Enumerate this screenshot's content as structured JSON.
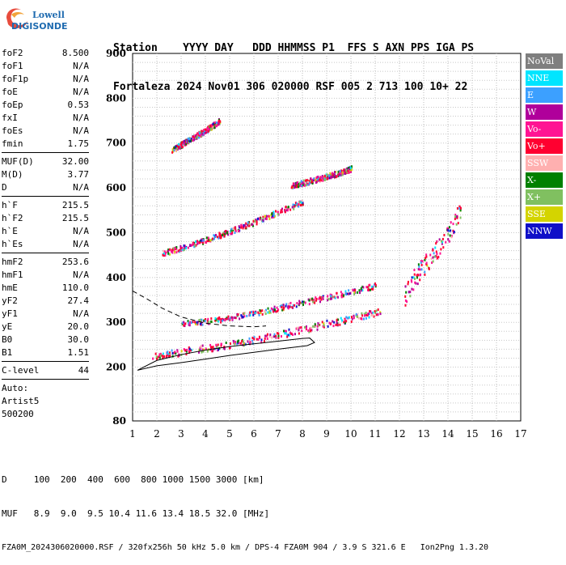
{
  "logo": {
    "line1": "Lowell",
    "line2": "DIGISONDE"
  },
  "header": {
    "labels": "Station    YYYY DAY   DDD HHMMSS P1  FFS S AXN PPS IGA PS",
    "values": "Fortaleza 2024 Nov01 306 020000 RSF 005 2 713 100 10+ 22"
  },
  "params": {
    "group1": [
      {
        "k": "foF2",
        "v": "8.500"
      },
      {
        "k": "foF1",
        "v": "N/A"
      },
      {
        "k": "foF1p",
        "v": "N/A"
      },
      {
        "k": "foE",
        "v": "N/A"
      },
      {
        "k": "foEp",
        "v": "0.53"
      },
      {
        "k": "fxI",
        "v": "N/A"
      },
      {
        "k": "foEs",
        "v": "N/A"
      },
      {
        "k": "fmin",
        "v": "1.75"
      }
    ],
    "group2": [
      {
        "k": "MUF(D)",
        "v": "32.00"
      },
      {
        "k": "M(D)",
        "v": "3.77"
      },
      {
        "k": "D",
        "v": "N/A"
      }
    ],
    "group3": [
      {
        "k": "h`F",
        "v": "215.5"
      },
      {
        "k": "h`F2",
        "v": "215.5"
      },
      {
        "k": "h`E",
        "v": "N/A"
      },
      {
        "k": "h`Es",
        "v": "N/A"
      }
    ],
    "group4": [
      {
        "k": "hmF2",
        "v": "253.6"
      },
      {
        "k": "hmF1",
        "v": "N/A"
      },
      {
        "k": "hmE",
        "v": "110.0"
      },
      {
        "k": "yF2",
        "v": "27.4"
      },
      {
        "k": "yF1",
        "v": "N/A"
      },
      {
        "k": "yE",
        "v": "20.0"
      },
      {
        "k": "B0",
        "v": "30.0"
      },
      {
        "k": "B1",
        "v": "1.51"
      }
    ],
    "clevel": {
      "k": "C-level",
      "v": "44"
    },
    "auto": [
      "Auto:",
      "Artist5",
      "500200"
    ]
  },
  "legend": [
    {
      "label": "NoVal",
      "color": "#7f7f7f"
    },
    {
      "label": "NNE",
      "color": "#00e5ff"
    },
    {
      "label": "E",
      "color": "#3ca0ff"
    },
    {
      "label": "W",
      "color": "#b0009b"
    },
    {
      "label": "Vo-",
      "color": "#ff1493"
    },
    {
      "label": "Vo+",
      "color": "#ff0030"
    },
    {
      "label": "SSW",
      "color": "#ffb0b0"
    },
    {
      "label": "X-",
      "color": "#008000"
    },
    {
      "label": "X+",
      "color": "#80c060"
    },
    {
      "label": "SSE",
      "color": "#d4d400"
    },
    {
      "label": "NNW",
      "color": "#1010c8"
    }
  ],
  "footer": {
    "d_row": "D     100  200  400  600  800 1000 1500 3000 [km]",
    "muf_row": "MUF   8.9  9.0  9.5 10.4 11.6 13.4 18.5 32.0 [MHz]",
    "info": "FZA0M_2024306020000.RSF / 320fx256h 50 kHz 5.0 km / DPS-4 FZA0M 904 / 3.9 S 321.6 E   Ion2Png 1.3.20"
  },
  "chart_data": {
    "type": "scatter",
    "xlabel": "",
    "ylabel": "",
    "xlim": [
      1,
      17
    ],
    "ylim": [
      80,
      900
    ],
    "x_ticks": [
      "1",
      "2",
      "3",
      "4",
      "5",
      "6",
      "7",
      "8",
      "9",
      "10",
      "11",
      "12",
      "13",
      "14",
      "15",
      "16",
      "17"
    ],
    "y_ticks": [
      {
        "v": 80,
        "label": "80"
      },
      {
        "v": 200,
        "label": "200"
      },
      {
        "v": 300,
        "label": "300"
      },
      {
        "v": 400,
        "label": "400"
      },
      {
        "v": 500,
        "label": "500"
      },
      {
        "v": 600,
        "label": "600"
      },
      {
        "v": 700,
        "label": "700"
      },
      {
        "v": 800,
        "label": "800"
      },
      {
        "v": 900,
        "label": "900"
      }
    ],
    "grid": true,
    "echo_traces": [
      {
        "name": "O trace F",
        "x": [
          1.8,
          2.5,
          3.5,
          4.5,
          5.5,
          6.5,
          7.5,
          8.5,
          9.5,
          10.5,
          11.3
        ],
        "y": [
          225,
          232,
          240,
          248,
          258,
          268,
          280,
          292,
          305,
          318,
          328
        ]
      },
      {
        "name": "F upper",
        "x": [
          3.0,
          4.0,
          5.0,
          6.0,
          7.0,
          8.0,
          9.0,
          10.0,
          11.0
        ],
        "y": [
          298,
          304,
          312,
          322,
          334,
          346,
          358,
          370,
          384
        ]
      },
      {
        "name": "2F",
        "x": [
          2.2,
          3.0,
          4.0,
          5.0,
          6.0,
          7.0,
          8.0
        ],
        "y": [
          455,
          468,
          485,
          505,
          525,
          548,
          570
        ]
      },
      {
        "name": "3F",
        "x": [
          2.6,
          3.2,
          4.0,
          4.6
        ],
        "y": [
          685,
          705,
          730,
          752
        ]
      },
      {
        "name": "2F faint",
        "x": [
          7.5,
          8.5,
          9.5,
          10.0
        ],
        "y": [
          605,
          620,
          635,
          645
        ]
      },
      {
        "name": "high spread",
        "x": [
          12.2,
          12.6,
          13.0,
          13.4,
          13.8,
          14.2,
          14.5
        ],
        "y": [
          360,
          400,
          430,
          455,
          480,
          520,
          560
        ]
      }
    ],
    "profile_solid": {
      "x": [
        1.2,
        2,
        3,
        4,
        5,
        6,
        7,
        8,
        8.3,
        8.5,
        8.2,
        7,
        6,
        5,
        4,
        3,
        2,
        1.2
      ],
      "y": [
        193,
        215,
        228,
        238,
        246,
        252,
        258,
        264,
        265,
        255,
        248,
        240,
        233,
        226,
        218,
        210,
        203,
        193
      ]
    },
    "profile_dashed": {
      "x": [
        1,
        1.6,
        2.2,
        3,
        4,
        5,
        6,
        6.5
      ],
      "y": [
        370,
        352,
        332,
        312,
        298,
        292,
        290,
        292
      ]
    }
  }
}
